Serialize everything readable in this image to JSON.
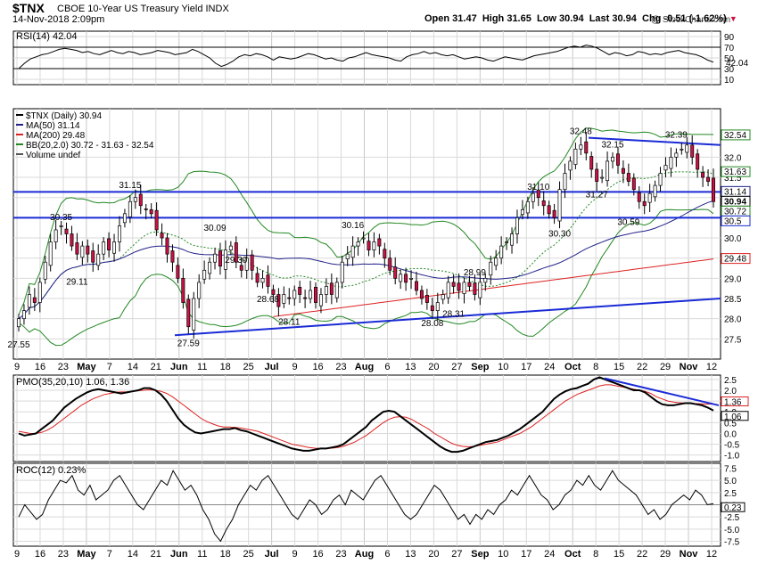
{
  "header": {
    "symbol": "$TNX",
    "name": "CBOE 10-Year US Treasury Yield INDX",
    "date": "14-Nov-2018 2:09pm",
    "watermark": "@ StockCharts.com",
    "quote_open": "Open 31.47",
    "quote_high": "High 31.65",
    "quote_low": "Low 30.94",
    "quote_last": "Last 30.94",
    "quote_chg": "Chg -0.51 (-1.62%)",
    "down_arrow": "▼"
  },
  "colors": {
    "up": "#ffffff",
    "down": "#cc1144",
    "ma50": "#22228a",
    "ma200": "#dd2222",
    "bb": "#228822",
    "trend": "#1a2bd6",
    "grid": "#d9d9d9"
  },
  "chart_data": [
    {
      "type": "line",
      "name": "rsi",
      "legend": "RSI(14) 42.04",
      "ylim": [
        0,
        100
      ],
      "yticks": [
        "90",
        "70",
        "50",
        "30",
        "10"
      ],
      "last_label": "42.04",
      "series": [
        {
          "values": [
            30,
            40,
            48,
            52,
            56,
            58,
            62,
            66,
            68,
            66,
            64,
            60,
            62,
            58,
            56,
            60,
            64,
            60,
            58,
            62,
            60,
            56,
            58,
            60,
            64,
            62,
            60,
            56,
            58,
            60,
            66,
            62,
            56,
            50,
            40,
            34,
            38,
            44,
            52,
            56,
            54,
            58,
            56,
            52,
            46,
            52,
            50,
            48,
            50,
            54,
            58,
            56,
            52,
            48,
            50,
            46,
            44,
            50,
            52,
            56,
            60,
            56,
            54,
            52,
            50,
            46,
            44,
            52,
            56,
            58,
            62,
            58,
            60,
            56,
            54,
            56,
            52,
            48,
            50,
            52,
            50,
            46,
            44,
            48,
            52,
            50,
            48,
            46,
            50,
            54,
            56,
            58,
            60,
            62,
            66,
            70,
            72,
            70,
            74,
            72,
            68,
            62,
            56,
            60,
            58,
            54,
            56,
            62,
            60,
            56,
            58,
            56,
            60,
            62,
            64,
            60,
            58,
            56,
            52,
            46,
            42
          ]
        }
      ]
    },
    {
      "type": "candlestick",
      "name": "price",
      "legend_title": "$TNX (Daily) 30.94",
      "legend_ma50": "MA(50) 31.14",
      "legend_ma200": "MA(200) 29.48",
      "legend_bb": "BB(20,2.0) 30.72 - 31.63 - 32.54",
      "legend_volume": "Volume undef",
      "ylim": [
        27.0,
        33.2
      ],
      "yticks": [
        "32.0",
        "31.5",
        "31.0",
        "30.5",
        "30.0",
        "29.5",
        "29.0",
        "28.5",
        "28.0",
        "27.5"
      ],
      "right_labels": [
        "32.54",
        "31.63",
        "31.14",
        "30.94",
        "30.72",
        "30.5",
        "29.48"
      ],
      "x_labels": [
        "9",
        "16",
        "23",
        "May",
        "7",
        "14",
        "21",
        "Jun",
        "11",
        "18",
        "25",
        "Jul",
        "9",
        "16",
        "23",
        "Aug",
        "6",
        "13",
        "20",
        "27",
        "Sep",
        "10",
        "17",
        "24",
        "Oct",
        "8",
        "15",
        "22",
        "29",
        "Nov",
        "12"
      ],
      "annotations": [
        "27.55",
        "30.35",
        "29.11",
        "31.15",
        "27.59",
        "30.09",
        "29.30",
        "28.68",
        "28.11",
        "30.16",
        "28.08",
        "28.99",
        "28.31",
        "31.10",
        "30.30",
        "32.48",
        "31.27",
        "32.15",
        "30.59",
        "32.39"
      ],
      "closes": [
        28.0,
        28.2,
        28.6,
        28.4,
        28.9,
        29.4,
        29.9,
        30.2,
        30.3,
        30.1,
        29.8,
        29.6,
        29.8,
        29.6,
        29.4,
        29.6,
        29.9,
        29.7,
        29.9,
        30.3,
        30.6,
        30.9,
        31.0,
        30.8,
        30.7,
        30.6,
        30.2,
        30.0,
        29.6,
        29.4,
        29.0,
        28.4,
        27.8,
        28.5,
        28.9,
        29.2,
        29.4,
        29.6,
        29.3,
        29.7,
        29.8,
        29.4,
        29.2,
        29.5,
        29.2,
        28.9,
        29.0,
        28.8,
        28.6,
        28.3,
        28.6,
        28.5,
        28.7,
        28.6,
        28.5,
        28.7,
        28.4,
        28.6,
        28.8,
        28.6,
        28.9,
        29.4,
        29.6,
        29.8,
        29.9,
        30.0,
        29.7,
        29.9,
        29.8,
        29.5,
        29.2,
        29.0,
        29.1,
        28.9,
        29.0,
        28.7,
        28.5,
        28.4,
        28.2,
        28.4,
        28.6,
        28.9,
        28.8,
        28.7,
        28.9,
        28.8,
        28.6,
        28.9,
        29.0,
        29.4,
        29.5,
        29.8,
        29.9,
        30.1,
        30.5,
        30.7,
        30.9,
        31.1,
        31.0,
        30.8,
        30.6,
        30.5,
        31.2,
        31.6,
        31.9,
        32.2,
        32.3,
        32.1,
        31.7,
        31.4,
        31.5,
        31.9,
        32.0,
        31.8,
        31.6,
        31.4,
        31.2,
        30.9,
        30.8,
        31.1,
        31.3,
        31.6,
        31.8,
        32.0,
        32.1,
        32.2,
        32.3,
        32.0,
        31.7,
        31.5,
        31.4,
        30.9
      ]
    },
    {
      "type": "line",
      "name": "pmo",
      "legend": "PMO(35,20,10) 1.06, 1.36",
      "ylim": [
        -1.3,
        2.7
      ],
      "yticks": [
        "2.5",
        "2.0",
        "1.5",
        "1.0",
        "0.5",
        "0.0",
        "-0.5",
        "-1.0"
      ],
      "last_labels": [
        "1.36",
        "1.06"
      ],
      "series": [
        {
          "values": [
            0,
            -0.1,
            -0.05,
            0,
            0.2,
            0.4,
            0.6,
            0.9,
            1.2,
            1.4,
            1.6,
            1.75,
            1.9,
            2.0,
            2.05,
            2.0,
            1.95,
            1.9,
            1.85,
            1.9,
            1.95,
            2.0,
            2.1,
            2.1,
            2.0,
            1.8,
            1.5,
            1.1,
            0.7,
            0.4,
            0.2,
            0.05,
            0.0,
            0.05,
            0.1,
            0.15,
            0.2,
            0.2,
            0.25,
            0.15,
            0.1,
            0.0,
            -0.1,
            -0.2,
            -0.3,
            -0.4,
            -0.5,
            -0.6,
            -0.7,
            -0.75,
            -0.8,
            -0.8,
            -0.75,
            -0.7,
            -0.7,
            -0.65,
            -0.6,
            -0.5,
            -0.3,
            -0.1,
            0.1,
            0.3,
            0.6,
            0.8,
            1.0,
            1.05,
            1.0,
            0.8,
            0.6,
            0.4,
            0.2,
            0.0,
            -0.2,
            -0.4,
            -0.6,
            -0.75,
            -0.85,
            -0.85,
            -0.8,
            -0.7,
            -0.6,
            -0.5,
            -0.4,
            -0.35,
            -0.3,
            -0.2,
            -0.1,
            0.05,
            0.2,
            0.4,
            0.6,
            0.8,
            1.0,
            1.3,
            1.6,
            1.8,
            1.95,
            2.05,
            2.1,
            2.2,
            2.3,
            2.5,
            2.6,
            2.5,
            2.4,
            2.3,
            2.2,
            2.1,
            2.0,
            2.0,
            1.9,
            1.7,
            1.5,
            1.35,
            1.3,
            1.3,
            1.35,
            1.4,
            1.4,
            1.35,
            1.3,
            1.2,
            1.06
          ]
        },
        {
          "values": [
            0.1,
            0.05,
            0.0,
            0.0,
            0.05,
            0.15,
            0.3,
            0.5,
            0.7,
            0.9,
            1.1,
            1.3,
            1.45,
            1.6,
            1.7,
            1.8,
            1.85,
            1.9,
            1.92,
            1.93,
            1.95,
            1.98,
            2.0,
            2.02,
            2.0,
            1.95,
            1.85,
            1.7,
            1.5,
            1.3,
            1.1,
            0.9,
            0.7,
            0.55,
            0.45,
            0.35,
            0.3,
            0.3,
            0.28,
            0.25,
            0.2,
            0.15,
            0.1,
            0.0,
            -0.1,
            -0.2,
            -0.3,
            -0.4,
            -0.5,
            -0.55,
            -0.6,
            -0.65,
            -0.68,
            -0.7,
            -0.7,
            -0.68,
            -0.65,
            -0.6,
            -0.5,
            -0.4,
            -0.25,
            -0.1,
            0.1,
            0.3,
            0.5,
            0.65,
            0.75,
            0.78,
            0.75,
            0.65,
            0.5,
            0.35,
            0.2,
            0.0,
            -0.15,
            -0.3,
            -0.45,
            -0.55,
            -0.6,
            -0.62,
            -0.6,
            -0.55,
            -0.5,
            -0.45,
            -0.4,
            -0.3,
            -0.2,
            -0.1,
            0.0,
            0.15,
            0.3,
            0.5,
            0.7,
            0.9,
            1.1,
            1.3,
            1.5,
            1.65,
            1.8,
            1.9,
            2.0,
            2.1,
            2.2,
            2.25,
            2.25,
            2.2,
            2.15,
            2.1,
            2.05,
            2.0,
            1.95,
            1.85,
            1.7,
            1.6,
            1.5,
            1.45,
            1.42,
            1.4,
            1.38,
            1.38,
            1.37,
            1.36,
            1.36
          ]
        }
      ]
    },
    {
      "type": "line",
      "name": "roc",
      "legend": "ROC(12) 0.23%",
      "ylim": [
        -8.5,
        8.5
      ],
      "yticks": [
        "7.5",
        "5.0",
        "2.5",
        "0.0",
        "-2.5",
        "-5.0",
        "-7.5"
      ],
      "last_label": "0.23",
      "series": [
        {
          "values": [
            -2.5,
            0,
            -1.5,
            -3,
            -2,
            1,
            3,
            5,
            4.5,
            6,
            3,
            2,
            4,
            1,
            2,
            3,
            5,
            6,
            4,
            2,
            0,
            -1,
            1,
            3,
            5,
            4,
            7,
            5,
            3,
            4,
            2,
            -1,
            -3,
            -6,
            -7.5,
            -5,
            -3,
            0,
            2,
            4,
            3,
            5,
            6,
            4,
            2,
            0,
            -2,
            -3,
            -1,
            1,
            0,
            -2,
            -1,
            1,
            2,
            0,
            3,
            2,
            1,
            3,
            5,
            6,
            4,
            2,
            0,
            -2,
            -3,
            -2,
            0,
            2,
            4,
            3,
            1,
            -1,
            -3,
            -2,
            -4,
            -2,
            -3,
            -1,
            -2,
            0,
            1,
            3,
            2,
            4,
            6,
            4,
            2,
            1,
            -1,
            0,
            2,
            3,
            5,
            4,
            6,
            4,
            3,
            5,
            7,
            5,
            4,
            3,
            2,
            0,
            -2,
            -1,
            -3,
            -2,
            0,
            1,
            2,
            1,
            3,
            2,
            0,
            0.23
          ]
        }
      ]
    }
  ]
}
